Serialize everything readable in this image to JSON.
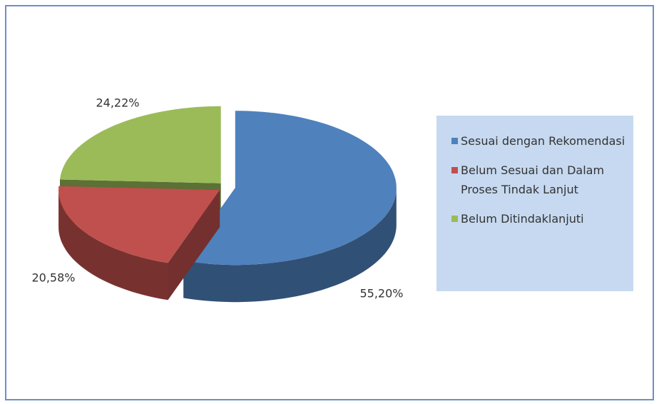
{
  "chart_data": {
    "type": "pie",
    "categories": [
      "Sesuai dengan Rekomendasi",
      "Belum Sesuai dan Dalam Proses Tindak Lanjut",
      "Belum Ditindaklanjuti"
    ],
    "values": [
      55.2,
      20.58,
      24.22
    ],
    "value_labels": [
      "55,20%",
      "20,58%",
      "24,22%"
    ],
    "colors": [
      "#4f81bd",
      "#c0504d",
      "#9bbb59"
    ],
    "legend": "right"
  }
}
